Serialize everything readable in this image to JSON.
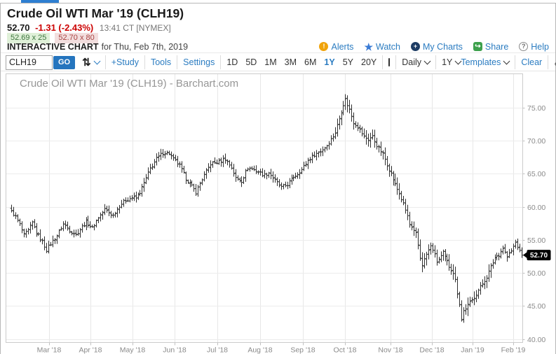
{
  "header": {
    "title": "Crude Oil WTI Mar '19 (CLH19)",
    "last_price": "52.70",
    "change": "-1.31 (-2.43%)",
    "quote_time": "13:41 CT [NYMEX]",
    "bid": "52.69 x 25",
    "ask": "52.70 x 80",
    "section_label": "INTERACTIVE CHART",
    "section_date": "for Thu, Feb 7th, 2019",
    "links": [
      {
        "icon": "alerts-icon",
        "label": "Alerts"
      },
      {
        "icon": "watch-star-icon",
        "label": "Watch"
      },
      {
        "icon": "my-charts-icon",
        "label": "My Charts"
      },
      {
        "icon": "share-icon",
        "label": "Share"
      },
      {
        "icon": "help-icon",
        "label": "Help"
      }
    ]
  },
  "toolbar": {
    "symbol_value": "CLH19",
    "go_label": "GO",
    "study_label": "+Study",
    "tools_label": "Tools",
    "settings_label": "Settings",
    "ranges": [
      "1D",
      "5D",
      "1M",
      "3M",
      "6M",
      "1Y",
      "5Y",
      "20Y"
    ],
    "active_range": "1Y",
    "frequency_value": "Daily",
    "period_value": "1Y",
    "templates_label": "Templates",
    "clear_label": "Clear"
  },
  "chart_data": {
    "type": "ohlc-bar",
    "watermark": "Crude Oil WTI Mar '19 (CLH19) - Barchart.com",
    "symbol": "CLH19",
    "frequency": "Daily",
    "range": "1Y",
    "grid": true,
    "y_axis": {
      "min": 39.5,
      "max": 80.1,
      "tick_values": [
        75,
        70,
        65,
        60,
        55,
        50,
        45,
        40
      ],
      "tick_labels": [
        "75.00",
        "70.00",
        "65.00",
        "60.00",
        "55.00",
        "50.00",
        "45.00",
        "40.00"
      ]
    },
    "x_labels": [
      "Mar '18",
      "Apr '18",
      "May '18",
      "Jun '18",
      "Jul '18",
      "Aug '18",
      "Sep '18",
      "Oct '18",
      "Nov '18",
      "Dec '18",
      "Jan '19",
      "Feb '19"
    ],
    "last_price": 52.7,
    "last_price_label": "52.70",
    "bars_total": 247,
    "close_anchors_day_price": [
      [
        0,
        59.3
      ],
      [
        2,
        58.5
      ],
      [
        4,
        57.3
      ],
      [
        6,
        55.7
      ],
      [
        8,
        56.4
      ],
      [
        10,
        57.6
      ],
      [
        12,
        56.1
      ],
      [
        15,
        54.7
      ],
      [
        17,
        53.5
      ],
      [
        19,
        54.4
      ],
      [
        22,
        55.7
      ],
      [
        25,
        57.4
      ],
      [
        28,
        56.5
      ],
      [
        31,
        55.8
      ],
      [
        34,
        57.0
      ],
      [
        36,
        57.7
      ],
      [
        39,
        56.8
      ],
      [
        42,
        58.4
      ],
      [
        45,
        59.6
      ],
      [
        49,
        58.7
      ],
      [
        52,
        60.2
      ],
      [
        55,
        61.0
      ],
      [
        58,
        61.4
      ],
      [
        60,
        61.3
      ],
      [
        62,
        62.2
      ],
      [
        65,
        64.3
      ],
      [
        67,
        65.8
      ],
      [
        70,
        67.2
      ],
      [
        73,
        68.2
      ],
      [
        76,
        68.1
      ],
      [
        78,
        67.2
      ],
      [
        81,
        66.2
      ],
      [
        84,
        64.3
      ],
      [
        86,
        63.5
      ],
      [
        89,
        62.2
      ],
      [
        92,
        64.2
      ],
      [
        96,
        66.5
      ],
      [
        100,
        66.8
      ],
      [
        103,
        67.3
      ],
      [
        106,
        65.9
      ],
      [
        108,
        64.3
      ],
      [
        111,
        63.9
      ],
      [
        114,
        65.9
      ],
      [
        117,
        65.6
      ],
      [
        119,
        65.3
      ],
      [
        122,
        64.8
      ],
      [
        124,
        65.2
      ],
      [
        127,
        64.0
      ],
      [
        130,
        62.9
      ],
      [
        133,
        63.4
      ],
      [
        136,
        64.5
      ],
      [
        140,
        65.6
      ],
      [
        143,
        67.0
      ],
      [
        146,
        67.9
      ],
      [
        149,
        68.4
      ],
      [
        152,
        69.3
      ],
      [
        154,
        70.2
      ],
      [
        156,
        71.2
      ],
      [
        158,
        73.4
      ],
      [
        160,
        75.5
      ],
      [
        161,
        76.2
      ],
      [
        163,
        74.7
      ],
      [
        165,
        72.8
      ],
      [
        167,
        72.1
      ],
      [
        170,
        70.6
      ],
      [
        172,
        70.2
      ],
      [
        174,
        70.6
      ],
      [
        176,
        69.3
      ],
      [
        179,
        68.0
      ],
      [
        181,
        66.4
      ],
      [
        183,
        65.0
      ],
      [
        185,
        63.3
      ],
      [
        187,
        62.0
      ],
      [
        189,
        60.4
      ],
      [
        191,
        58.6
      ],
      [
        192,
        57.3
      ],
      [
        194,
        56.2
      ],
      [
        195,
        55.9
      ],
      [
        196,
        54.2
      ],
      [
        197,
        52.3
      ],
      [
        198,
        51.3
      ],
      [
        200,
        52.8
      ],
      [
        202,
        54.0
      ],
      [
        203,
        53.6
      ],
      [
        205,
        51.7
      ],
      [
        207,
        52.5
      ],
      [
        208,
        53.0
      ],
      [
        211,
        51.0
      ],
      [
        213,
        50.1
      ],
      [
        214,
        48.9
      ],
      [
        215,
        47.0
      ],
      [
        216,
        45.4
      ],
      [
        217,
        42.9
      ],
      [
        218,
        44.3
      ],
      [
        220,
        45.1
      ],
      [
        222,
        45.9
      ],
      [
        224,
        46.9
      ],
      [
        227,
        48.4
      ],
      [
        229,
        49.4
      ],
      [
        231,
        50.9
      ],
      [
        233,
        52.3
      ],
      [
        235,
        52.8
      ],
      [
        237,
        53.8
      ],
      [
        239,
        52.4
      ],
      [
        241,
        53.3
      ],
      [
        243,
        54.6
      ],
      [
        244,
        54.0
      ],
      [
        245,
        53.2
      ],
      [
        246,
        52.7
      ]
    ],
    "colors": {
      "bar": "#2f2f2f",
      "grid_h": "#ececec",
      "grid_v": "#e7e7e7",
      "border": "#cbcbcb",
      "tick": "#c0c0c0",
      "axis_text": "#8a8a8a",
      "watermark": "#969696",
      "last_price_bg": "#000000",
      "last_price_text": "#ffffff"
    }
  }
}
